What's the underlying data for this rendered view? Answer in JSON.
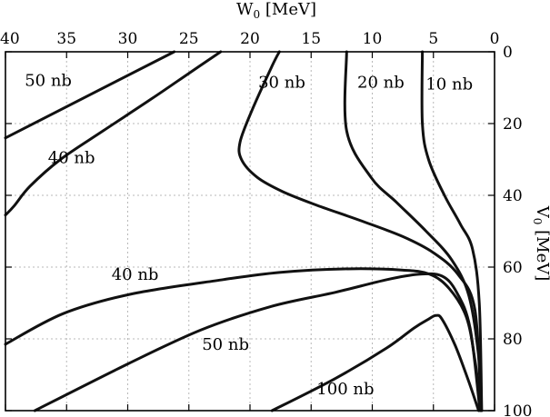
{
  "chart_data": {
    "type": "line",
    "title": "",
    "xlabel": "W",
    "xlabel_sub": "0",
    "xlabel_unit": " [MeV]",
    "ylabel": "V",
    "ylabel_sub": "0",
    "ylabel_unit": " [MeV]",
    "xlim": [
      40,
      0
    ],
    "ylim": [
      0,
      100
    ],
    "x_axis_position": "top",
    "y_axis_position": "right",
    "y_inverted": true,
    "grid": true,
    "x_ticks": [
      40,
      35,
      30,
      25,
      20,
      15,
      10,
      5,
      0
    ],
    "y_ticks": [
      0,
      20,
      40,
      60,
      80,
      100
    ],
    "series": [
      {
        "name": "50 nb (upper)",
        "points": [
          [
            40,
            24
          ],
          [
            26.2,
            0
          ]
        ]
      },
      {
        "name": "40 nb (upper)",
        "points": [
          [
            40,
            45.5
          ],
          [
            39.3,
            43
          ],
          [
            38,
            37.5
          ],
          [
            35.5,
            30
          ],
          [
            32,
            22
          ],
          [
            28,
            13
          ],
          [
            25,
            6
          ],
          [
            22.4,
            0
          ]
        ]
      },
      {
        "name": "30 nb",
        "points": [
          [
            17.6,
            0
          ],
          [
            18.2,
            4
          ],
          [
            19.8,
            16
          ],
          [
            20.8,
            25
          ],
          [
            20.7,
            30
          ],
          [
            19.4,
            35
          ],
          [
            17.3,
            39
          ],
          [
            14.5,
            42.8
          ],
          [
            11,
            47
          ],
          [
            7.5,
            51.5
          ],
          [
            5,
            56
          ],
          [
            3,
            62
          ],
          [
            1.6,
            72
          ],
          [
            1.1,
            100
          ]
        ]
      },
      {
        "name": "20 nb",
        "points": [
          [
            12.1,
            0
          ],
          [
            12.1,
            22
          ],
          [
            10.1,
            35
          ],
          [
            8,
            42
          ],
          [
            5.6,
            50
          ],
          [
            3.5,
            58
          ],
          [
            2.1,
            68
          ],
          [
            1.3,
            85
          ],
          [
            1.1,
            100
          ]
        ]
      },
      {
        "name": "10 nb",
        "points": [
          [
            5.9,
            0
          ],
          [
            5.9,
            20
          ],
          [
            5.4,
            30
          ],
          [
            4.1,
            40
          ],
          [
            2.8,
            48
          ],
          [
            1.8,
            55
          ],
          [
            1.25,
            70
          ],
          [
            1.05,
            100
          ]
        ]
      },
      {
        "name": "40 nb (lower)",
        "points": [
          [
            40,
            81.5
          ],
          [
            35.3,
            73
          ],
          [
            29.7,
            67.5
          ],
          [
            22.2,
            63.5
          ],
          [
            17.6,
            61.5
          ],
          [
            12.3,
            60.5
          ],
          [
            7.6,
            60.8
          ],
          [
            5.3,
            62
          ],
          [
            3.7,
            66
          ],
          [
            2.3,
            74
          ],
          [
            1.6,
            86
          ],
          [
            1.1,
            100
          ]
        ]
      },
      {
        "name": "50 nb (lower)",
        "points": [
          [
            37.6,
            100
          ],
          [
            30,
            87
          ],
          [
            24,
            77.5
          ],
          [
            18.3,
            71
          ],
          [
            13,
            67
          ],
          [
            8.8,
            63.5
          ],
          [
            6.2,
            62
          ],
          [
            4.3,
            62.5
          ],
          [
            3.1,
            67
          ],
          [
            2,
            77
          ],
          [
            1.2,
            100
          ]
        ]
      },
      {
        "name": "100 nb",
        "points": [
          [
            18.2,
            100
          ],
          [
            13,
            91
          ],
          [
            8.8,
            82.5
          ],
          [
            6.6,
            77
          ],
          [
            5.4,
            74.5
          ],
          [
            4.8,
            73.5
          ],
          [
            4.3,
            74.5
          ],
          [
            3.2,
            82
          ],
          [
            2.1,
            92
          ],
          [
            1.3,
            100
          ]
        ]
      }
    ],
    "annotations": [
      {
        "text": "50 nb",
        "x": 36.5,
        "y": 9.5
      },
      {
        "text": "40 nb",
        "x": 34.6,
        "y": 31
      },
      {
        "text": "30 nb",
        "x": 17.4,
        "y": 10
      },
      {
        "text": "20 nb",
        "x": 9.3,
        "y": 10
      },
      {
        "text": "10 nb",
        "x": 3.7,
        "y": 10.5
      },
      {
        "text": "40 nb",
        "x": 29.4,
        "y": 63.5
      },
      {
        "text": "50 nb",
        "x": 22,
        "y": 83
      },
      {
        "text": "100 nb",
        "x": 12.2,
        "y": 95.5
      }
    ]
  }
}
